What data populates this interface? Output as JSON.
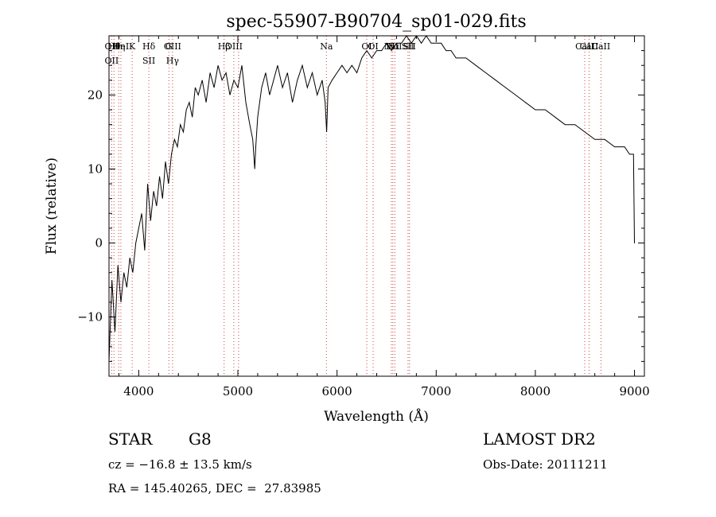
{
  "chart_data": {
    "type": "line",
    "title": "spec-55907-B90704_sp01-029.fits",
    "xlabel": "Wavelength (Å)",
    "ylabel": "Flux (relative)",
    "xlim": [
      3700,
      9100
    ],
    "ylim": [
      -18,
      28
    ],
    "xticks": [
      4000,
      5000,
      6000,
      7000,
      8000,
      9000
    ],
    "yticks": [
      -10,
      0,
      10,
      20
    ],
    "tick_labels_x": [
      "4000",
      "5000",
      "6000",
      "7000",
      "8000",
      "9000"
    ],
    "tick_labels_y": [
      "−10",
      "0",
      "10",
      "20"
    ],
    "grid": false,
    "series": [
      {
        "x": [
          3700,
          3730,
          3760,
          3790,
          3820,
          3850,
          3880,
          3910,
          3940,
          3970,
          4000,
          4030,
          4060,
          4090,
          4120,
          4150,
          4180,
          4210,
          4240,
          4270,
          4300,
          4330,
          4360,
          4390,
          4420,
          4450,
          4480,
          4510,
          4540,
          4570,
          4600,
          4640,
          4680,
          4720,
          4760,
          4800,
          4840,
          4880,
          4920,
          4960,
          5000,
          5040,
          5080,
          5120,
          5150,
          5170,
          5180,
          5200,
          5240,
          5280,
          5320,
          5360,
          5400,
          5450,
          5500,
          5550,
          5600,
          5650,
          5700,
          5750,
          5800,
          5850,
          5880,
          5895,
          5910,
          5950,
          6000,
          6050,
          6100,
          6150,
          6200,
          6250,
          6300,
          6350,
          6400,
          6450,
          6500,
          6550,
          6600,
          6650,
          6700,
          6750,
          6800,
          6850,
          6900,
          6950,
          7000,
          7050,
          7100,
          7150,
          7200,
          7300,
          7400,
          7500,
          7600,
          7700,
          7800,
          7900,
          8000,
          8100,
          8200,
          8300,
          8400,
          8500,
          8600,
          8700,
          8800,
          8900,
          8950,
          8990,
          9000,
          9003
        ],
        "y": [
          -16,
          -5,
          -12,
          -3,
          -8,
          -4,
          -6,
          -2,
          -4,
          0,
          2,
          4,
          -1,
          8,
          3,
          7,
          5,
          9,
          6,
          11,
          8,
          12,
          14,
          13,
          16,
          15,
          18,
          19,
          17,
          21,
          20,
          22,
          19,
          23,
          21,
          24,
          22,
          23,
          20,
          22,
          21,
          24,
          19,
          16,
          14,
          10,
          13,
          17,
          21,
          23,
          20,
          22,
          24,
          21,
          23,
          19,
          22,
          24,
          21,
          23,
          20,
          22,
          19,
          15,
          21,
          22,
          23,
          24,
          23,
          24,
          23,
          25,
          26,
          25,
          26,
          26,
          27,
          26,
          27,
          27,
          28,
          27,
          28,
          27,
          28,
          27,
          27,
          27,
          26,
          26,
          25,
          25,
          24,
          23,
          22,
          21,
          20,
          19,
          18,
          18,
          17,
          16,
          16,
          15,
          14,
          14,
          13,
          13,
          12,
          12,
          0,
          0
        ],
        "color": "#000000"
      }
    ],
    "line_markers": [
      {
        "x": 3727,
        "labels": [
          "OII",
          "OII"
        ]
      },
      {
        "x": 3750,
        "labels": [
          "Hθ"
        ]
      },
      {
        "x": 3798,
        "labels": [
          "Hη"
        ]
      },
      {
        "x": 3820,
        "labels": [
          "HeI"
        ]
      },
      {
        "x": 3934,
        "labels": [
          "K"
        ]
      },
      {
        "x": 4102,
        "labels": [
          "Hδ",
          "SII"
        ]
      },
      {
        "x": 4304,
        "labels": [
          "G"
        ]
      },
      {
        "x": 4341,
        "labels": [
          "OIII",
          "Hγ"
        ]
      },
      {
        "x": 4861,
        "labels": [
          "Hβ"
        ]
      },
      {
        "x": 4959,
        "labels": [
          "OIII"
        ]
      },
      {
        "x": 5007,
        "labels": []
      },
      {
        "x": 5893,
        "labels": [
          "Na"
        ]
      },
      {
        "x": 6300,
        "labels": [
          "OI"
        ]
      },
      {
        "x": 6364,
        "labels": [
          "OI"
        ]
      },
      {
        "x": 6548,
        "labels": [
          "NII"
        ]
      },
      {
        "x": 6563,
        "labels": [
          "Hα"
        ]
      },
      {
        "x": 6583,
        "labels": [
          "NII"
        ]
      },
      {
        "x": 6716,
        "labels": [
          "SII"
        ]
      },
      {
        "x": 6731,
        "labels": [
          "SII"
        ]
      },
      {
        "x": 8498,
        "labels": [
          "CaII"
        ]
      },
      {
        "x": 8542,
        "labels": [
          "CaII"
        ]
      },
      {
        "x": 8662,
        "labels": [
          "CaII"
        ]
      }
    ]
  },
  "info": {
    "object_class": "STAR",
    "subclass": "G8",
    "cz": "cz = −16.8 ± 13.5 km/s",
    "coords": "RA = 145.40265, DEC =  27.83985",
    "survey": "LAMOST DR2",
    "obs_date": "Obs-Date: 20111211"
  }
}
